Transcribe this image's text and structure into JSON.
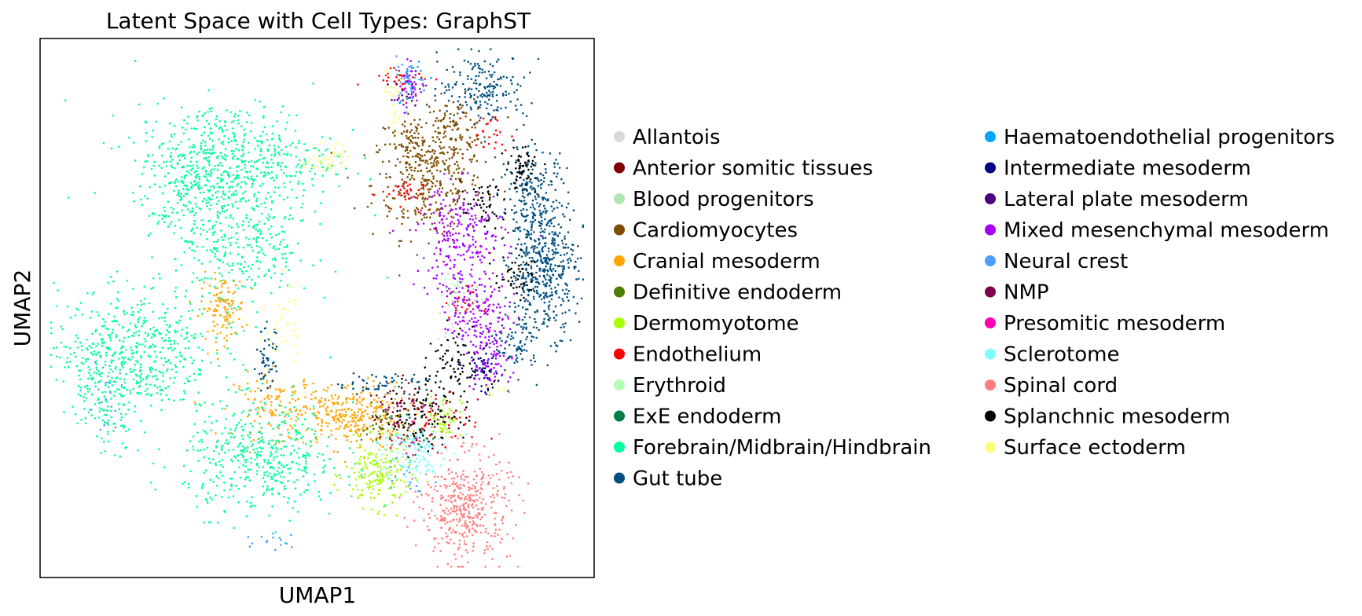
{
  "chart_data": {
    "type": "scatter",
    "title": "Latent Space with Cell Types: GraphST",
    "xlabel": "UMAP1",
    "ylabel": "UMAP2",
    "xlim": [
      0,
      100
    ],
    "ylim": [
      0,
      100
    ],
    "ticks": "none",
    "grid": false,
    "legend_position": "right, outside, two columns",
    "series": [
      {
        "name": "Allantois",
        "color": "#d9d9d9",
        "clusters": [
          [
            75,
            45,
            1.5,
            1.5,
            20
          ]
        ]
      },
      {
        "name": "Anterior somitic tissues",
        "color": "#7f0000",
        "clusters": [
          [
            68,
            30,
            4,
            3,
            70
          ]
        ]
      },
      {
        "name": "Blood progenitors",
        "color": "#b2e5b2",
        "clusters": [
          [
            76,
            52,
            2,
            2,
            30
          ]
        ]
      },
      {
        "name": "Cardiomyocytes",
        "color": "#7f4c00",
        "clusters": [
          [
            70,
            73,
            5,
            5,
            320
          ],
          [
            75,
            83,
            3,
            3,
            120
          ],
          [
            67,
            80,
            3,
            3,
            80
          ]
        ]
      },
      {
        "name": "Cranial mesoderm",
        "color": "#ffa500",
        "clusters": [
          [
            56,
            30,
            5,
            3,
            300
          ],
          [
            33,
            50,
            2,
            3,
            120
          ],
          [
            43,
            32,
            4,
            3,
            120
          ]
        ]
      },
      {
        "name": "Definitive endoderm",
        "color": "#4c7f00",
        "clusters": [
          [
            62,
            28,
            2,
            2,
            40
          ]
        ]
      },
      {
        "name": "Dermomyotome",
        "color": "#a6ff00",
        "clusters": [
          [
            61,
            19,
            3,
            3,
            180
          ],
          [
            73,
            30,
            1.5,
            2,
            50
          ]
        ]
      },
      {
        "name": "Endothelium",
        "color": "#ff0000",
        "clusters": [
          [
            65,
            93,
            3,
            1,
            30
          ],
          [
            65,
            71,
            2,
            1.5,
            30
          ],
          [
            76,
            51,
            1.5,
            1.5,
            20
          ],
          [
            71,
            27,
            4,
            3,
            40
          ],
          [
            81,
            82,
            2,
            2,
            25
          ]
        ]
      },
      {
        "name": "Erythroid",
        "color": "#b2ffb2",
        "clusters": [
          [
            75,
            55,
            1,
            1,
            10
          ]
        ]
      },
      {
        "name": "ExE endoderm",
        "color": "#007f4c",
        "clusters": [
          [
            68,
            26,
            2,
            2,
            20
          ]
        ]
      },
      {
        "name": "Forebrain/Midbrain/Hindbrain",
        "color": "#00ff9f",
        "clusters": [
          [
            35,
            78,
            9,
            5,
            500
          ],
          [
            17,
            42,
            7,
            6,
            500
          ],
          [
            40,
            22,
            7,
            5,
            450
          ],
          [
            37,
            62,
            6,
            7,
            300
          ],
          [
            28,
            70,
            4,
            6,
            220
          ],
          [
            12,
            34,
            3,
            5,
            120
          ]
        ]
      },
      {
        "name": "Gut tube",
        "color": "#00507f",
        "clusters": [
          [
            91,
            57,
            3,
            6,
            420
          ],
          [
            89,
            70,
            3,
            5,
            220
          ],
          [
            80,
            91,
            4,
            3,
            180
          ],
          [
            86,
            43,
            2,
            3,
            80
          ],
          [
            62,
            36,
            5,
            1,
            60
          ],
          [
            41,
            40,
            1,
            3,
            50
          ]
        ]
      },
      {
        "name": "Haematoendothelial progenitors",
        "color": "#00a5ff",
        "clusters": [
          [
            67,
            92,
            1,
            2,
            20
          ]
        ]
      },
      {
        "name": "Intermediate mesoderm",
        "color": "#00007f",
        "clusters": [
          [
            80,
            38,
            1.5,
            2,
            60
          ]
        ]
      },
      {
        "name": "Lateral plate mesoderm",
        "color": "#4c007f",
        "clusters": [
          [
            66,
            89,
            1.5,
            1.5,
            20
          ]
        ]
      },
      {
        "name": "Mixed mesenchymal mesoderm",
        "color": "#a500ff",
        "clusters": [
          [
            76,
            63,
            4,
            5,
            250
          ],
          [
            79,
            49,
            3,
            3,
            150
          ],
          [
            67,
            91,
            1.5,
            2,
            40
          ],
          [
            81,
            41,
            2,
            3,
            80
          ]
        ]
      },
      {
        "name": "Neural crest",
        "color": "#4c9fff",
        "clusters": [
          [
            66,
            92,
            1.5,
            2,
            30
          ],
          [
            12,
            34,
            2,
            4,
            20
          ],
          [
            43,
            7,
            2,
            1,
            15
          ],
          [
            66,
            20,
            2,
            2,
            20
          ]
        ]
      },
      {
        "name": "NMP",
        "color": "#7f004c",
        "clusters": [
          [
            64,
            32,
            2,
            2,
            30
          ]
        ]
      },
      {
        "name": "Presomitic mesoderm",
        "color": "#ff00b2",
        "clusters": [
          [
            66,
            26,
            2,
            2,
            15
          ]
        ]
      },
      {
        "name": "Sclerotome",
        "color": "#7fffff",
        "clusters": [
          [
            67,
            23,
            3,
            3,
            120
          ]
        ]
      },
      {
        "name": "Spinal cord",
        "color": "#ff7f7f",
        "clusters": [
          [
            77,
            13,
            4,
            5,
            420
          ]
        ]
      },
      {
        "name": "Splanchnic mesoderm",
        "color": "#000000",
        "clusters": [
          [
            87,
            76,
            1.5,
            2,
            60
          ],
          [
            80,
            69,
            2,
            2,
            50
          ],
          [
            86,
            56,
            2,
            2,
            50
          ],
          [
            74,
            40,
            2,
            3,
            70
          ],
          [
            70,
            30,
            4,
            3,
            80
          ]
        ]
      },
      {
        "name": "Surface ectoderm",
        "color": "#ffff7f",
        "clusters": [
          [
            52,
            78,
            2,
            1.5,
            50
          ],
          [
            44,
            47,
            1.5,
            4,
            40
          ],
          [
            64,
            89,
            1,
            3,
            30
          ],
          [
            82,
            35,
            1,
            1,
            15
          ]
        ]
      }
    ]
  }
}
